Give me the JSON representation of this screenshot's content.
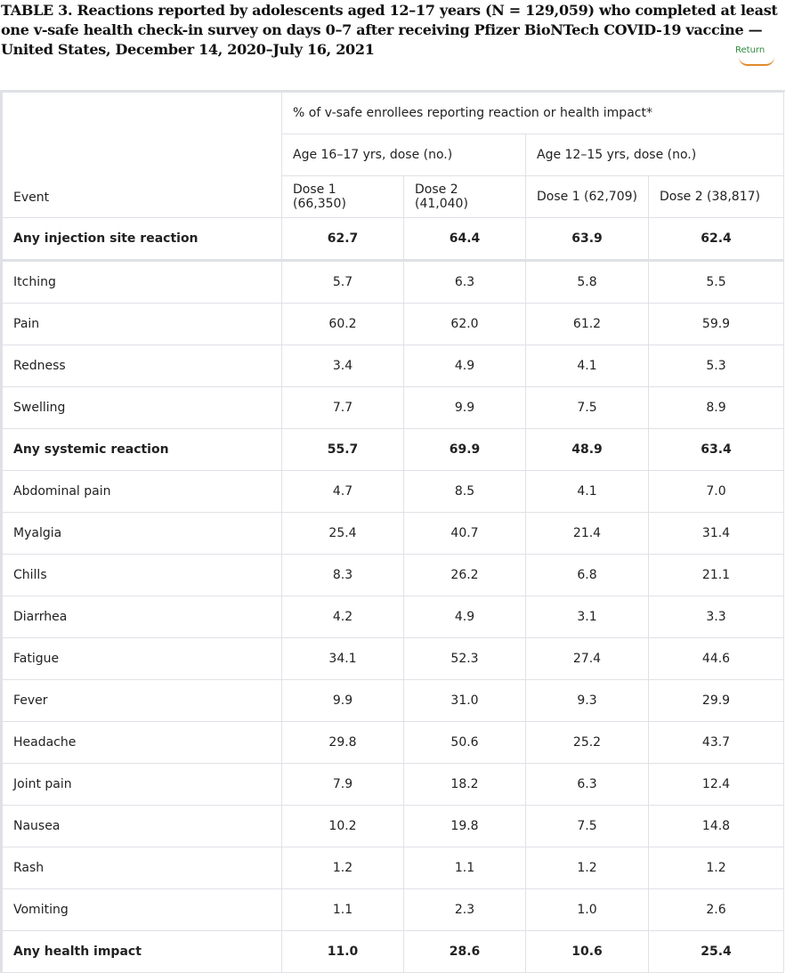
{
  "title": "TABLE 3. Reactions reported by adolescents aged 12–17 years (N = 129,059) who completed at least one v-safe health check-in survey on days 0–7 after receiving Pfizer BioNTech COVID-19 vaccine — United States, December 14, 2020–July 16, 2021",
  "return_label": "Return",
  "header": {
    "span": "% of v-safe enrollees reporting reaction or health impact*",
    "group1": "Age 16–17 yrs, dose (no.)",
    "group2": "Age 12–15 yrs, dose (no.)",
    "event": "Event",
    "cols": [
      "Dose 1 (66,350)",
      "Dose 2 (41,040)",
      "Dose 1 (62,709)",
      "Dose 2 (38,817)"
    ]
  },
  "rows": [
    {
      "event": "Any injection site reaction",
      "bold": true,
      "values": [
        "62.7",
        "64.4",
        "63.9",
        "62.4"
      ]
    },
    {
      "event": "Itching",
      "values": [
        "5.7",
        "6.3",
        "5.8",
        "5.5"
      ]
    },
    {
      "event": "Pain",
      "values": [
        "60.2",
        "62.0",
        "61.2",
        "59.9"
      ]
    },
    {
      "event": "Redness",
      "values": [
        "3.4",
        "4.9",
        "4.1",
        "5.3"
      ]
    },
    {
      "event": "Swelling",
      "values": [
        "7.7",
        "9.9",
        "7.5",
        "8.9"
      ]
    },
    {
      "event": "Any systemic reaction",
      "bold": true,
      "values": [
        "55.7",
        "69.9",
        "48.9",
        "63.4"
      ]
    },
    {
      "event": "Abdominal pain",
      "values": [
        "4.7",
        "8.5",
        "4.1",
        "7.0"
      ]
    },
    {
      "event": "Myalgia",
      "values": [
        "25.4",
        "40.7",
        "21.4",
        "31.4"
      ]
    },
    {
      "event": "Chills",
      "values": [
        "8.3",
        "26.2",
        "6.8",
        "21.1"
      ]
    },
    {
      "event": "Diarrhea",
      "values": [
        "4.2",
        "4.9",
        "3.1",
        "3.3"
      ]
    },
    {
      "event": "Fatigue",
      "values": [
        "34.1",
        "52.3",
        "27.4",
        "44.6"
      ]
    },
    {
      "event": "Fever",
      "values": [
        "9.9",
        "31.0",
        "9.3",
        "29.9"
      ]
    },
    {
      "event": "Headache",
      "values": [
        "29.8",
        "50.6",
        "25.2",
        "43.7"
      ]
    },
    {
      "event": "Joint pain",
      "values": [
        "7.9",
        "18.2",
        "6.3",
        "12.4"
      ]
    },
    {
      "event": "Nausea",
      "values": [
        "10.2",
        "19.8",
        "7.5",
        "14.8"
      ]
    },
    {
      "event": "Rash",
      "values": [
        "1.2",
        "1.1",
        "1.2",
        "1.2"
      ]
    },
    {
      "event": "Vomiting",
      "values": [
        "1.1",
        "2.3",
        "1.0",
        "2.6"
      ]
    },
    {
      "event": "Any health impact",
      "bold": true,
      "values": [
        "11.0",
        "28.6",
        "10.6",
        "25.4"
      ]
    }
  ]
}
